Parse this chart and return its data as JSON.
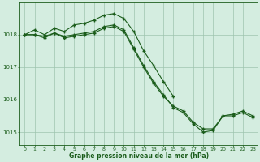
{
  "title": "Graphe pression niveau de la mer (hPa)",
  "bg_color": "#d4ede0",
  "line_color": "#1a5c1a",
  "grid_color": "#9ec4ae",
  "xlim": [
    -0.5,
    23.5
  ],
  "ylim": [
    1014.6,
    1019.0
  ],
  "yticks": [
    1015,
    1016,
    1017,
    1018
  ],
  "xticks": [
    0,
    1,
    2,
    3,
    4,
    5,
    6,
    7,
    8,
    9,
    10,
    11,
    12,
    13,
    14,
    15,
    16,
    17,
    18,
    19,
    20,
    21,
    22,
    23
  ],
  "line1_x": [
    0,
    1,
    2,
    3,
    4,
    5,
    6,
    7,
    8,
    9,
    10,
    11,
    12,
    13,
    14,
    15
  ],
  "line1_y": [
    1018.0,
    1018.15,
    1018.0,
    1018.2,
    1018.1,
    1018.3,
    1018.35,
    1018.45,
    1018.6,
    1018.65,
    1018.5,
    1018.1,
    1017.5,
    1017.05,
    1016.55,
    1016.1
  ],
  "line2_x": [
    0,
    1,
    2,
    3,
    4,
    5,
    6,
    7,
    8,
    9,
    10,
    11,
    12,
    13,
    14,
    15,
    16,
    17,
    18,
    19,
    20,
    21,
    22,
    23
  ],
  "line2_y": [
    1018.0,
    1018.0,
    1017.95,
    1018.05,
    1017.95,
    1018.0,
    1018.05,
    1018.1,
    1018.25,
    1018.3,
    1018.15,
    1017.6,
    1017.05,
    1016.55,
    1016.15,
    1015.75,
    1015.6,
    1015.25,
    1015.0,
    1015.05,
    1015.5,
    1015.55,
    1015.65,
    1015.5
  ],
  "line3_x": [
    0,
    1,
    2,
    3,
    4,
    5,
    6,
    7,
    8,
    9,
    10,
    11,
    12,
    13,
    14,
    15,
    16,
    17,
    18,
    19,
    20,
    21,
    22,
    23
  ],
  "line3_y": [
    1018.0,
    1018.0,
    1017.9,
    1018.05,
    1017.9,
    1017.95,
    1018.0,
    1018.05,
    1018.2,
    1018.25,
    1018.1,
    1017.55,
    1017.0,
    1016.5,
    1016.1,
    1015.8,
    1015.65,
    1015.3,
    1015.1,
    1015.1,
    1015.5,
    1015.5,
    1015.6,
    1015.45
  ]
}
